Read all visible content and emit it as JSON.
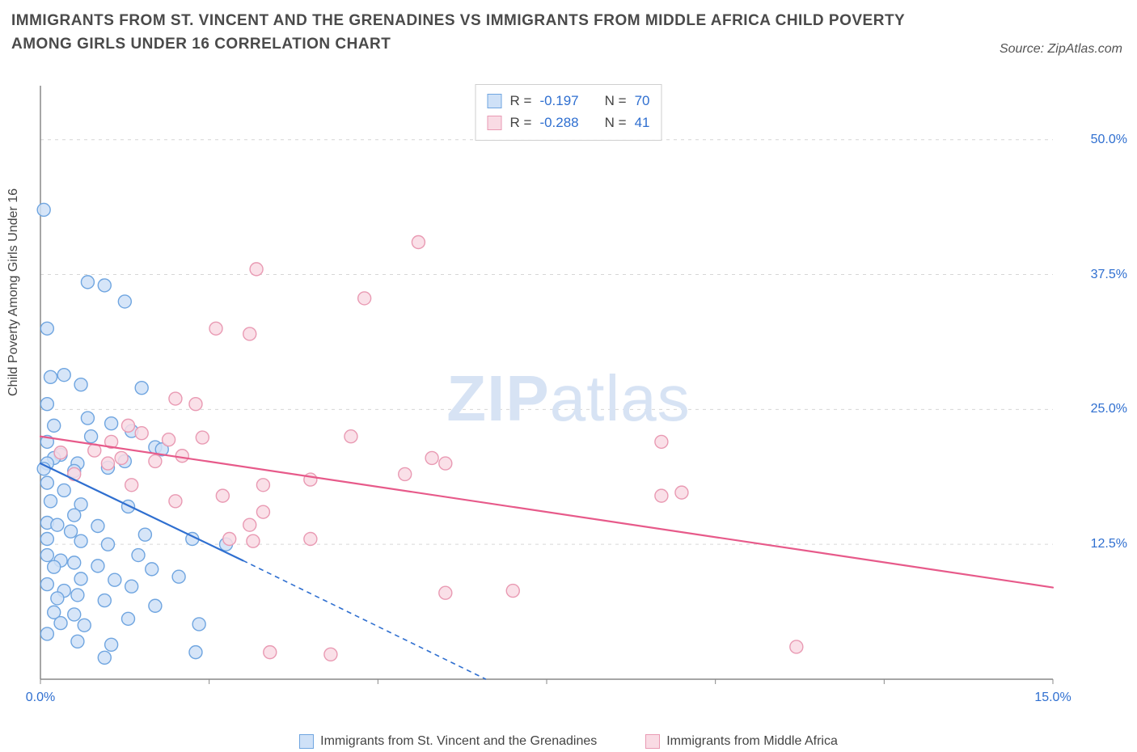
{
  "title": "IMMIGRANTS FROM ST. VINCENT AND THE GRENADINES VS IMMIGRANTS FROM MIDDLE AFRICA CHILD POVERTY AMONG GIRLS UNDER 16 CORRELATION CHART",
  "source": "Source: ZipAtlas.com",
  "ylabel": "Child Poverty Among Girls Under 16",
  "watermark_zip": "ZIP",
  "watermark_atlas": "atlas",
  "chart": {
    "type": "scatter",
    "xlim": [
      0,
      15
    ],
    "ylim": [
      0,
      55
    ],
    "x_ticks": [
      0,
      2.5,
      5,
      7.5,
      10,
      12.5,
      15
    ],
    "x_tick_labels": {
      "0": "0.0%",
      "15": "15.0%"
    },
    "y_ticks": [
      12.5,
      25,
      37.5,
      50
    ],
    "y_tick_labels": {
      "12.5": "12.5%",
      "25": "25.0%",
      "37.5": "37.5%",
      "50": "50.0%"
    },
    "grid_color": "#d6d6d6",
    "axis_color": "#888888",
    "background_color": "#ffffff",
    "marker_radius": 8,
    "marker_stroke_width": 1.4,
    "line_width_solid": 2.2,
    "line_width_dash": 1.6,
    "dash_pattern": "6,5"
  },
  "stats": {
    "rows": [
      {
        "r_label": "R =",
        "r_value": "-0.197",
        "n_label": "N =",
        "n_value": "70"
      },
      {
        "r_label": "R =",
        "r_value": "-0.288",
        "n_label": "N =",
        "n_value": "41"
      }
    ]
  },
  "series": [
    {
      "key": "svg_series",
      "label": "Immigrants from St. Vincent and the Grenadines",
      "fill": "#cfe1f7",
      "stroke": "#6fa5e0",
      "line_color": "#2f6fd0",
      "trend": {
        "x1": 0.0,
        "y1": 20.0,
        "x2": 3.0,
        "y2": 11.0,
        "x_dash_end": 6.6,
        "y_dash_end": 0.0
      },
      "points": [
        [
          0.05,
          43.5
        ],
        [
          0.7,
          36.8
        ],
        [
          0.95,
          36.5
        ],
        [
          1.25,
          35.0
        ],
        [
          0.1,
          32.5
        ],
        [
          0.35,
          28.2
        ],
        [
          0.15,
          28.0
        ],
        [
          0.6,
          27.3
        ],
        [
          1.5,
          27.0
        ],
        [
          0.1,
          25.5
        ],
        [
          0.7,
          24.2
        ],
        [
          0.2,
          23.5
        ],
        [
          1.05,
          23.7
        ],
        [
          0.1,
          22.0
        ],
        [
          0.75,
          22.5
        ],
        [
          1.35,
          23.0
        ],
        [
          1.7,
          21.5
        ],
        [
          0.3,
          20.8
        ],
        [
          0.2,
          20.5
        ],
        [
          0.1,
          20.0
        ],
        [
          0.05,
          19.5
        ],
        [
          0.55,
          20.0
        ],
        [
          0.5,
          19.3
        ],
        [
          1.0,
          19.6
        ],
        [
          1.25,
          20.2
        ],
        [
          1.8,
          21.3
        ],
        [
          0.1,
          18.2
        ],
        [
          0.35,
          17.5
        ],
        [
          0.15,
          16.5
        ],
        [
          0.6,
          16.2
        ],
        [
          0.5,
          15.2
        ],
        [
          1.3,
          16.0
        ],
        [
          0.1,
          14.5
        ],
        [
          0.25,
          14.3
        ],
        [
          0.45,
          13.7
        ],
        [
          0.1,
          13.0
        ],
        [
          0.6,
          12.8
        ],
        [
          1.0,
          12.5
        ],
        [
          1.55,
          13.4
        ],
        [
          2.25,
          13.0
        ],
        [
          2.75,
          12.5
        ],
        [
          0.1,
          11.5
        ],
        [
          0.3,
          11.0
        ],
        [
          0.2,
          10.4
        ],
        [
          0.5,
          10.8
        ],
        [
          0.85,
          10.5
        ],
        [
          0.6,
          9.3
        ],
        [
          1.1,
          9.2
        ],
        [
          1.65,
          10.2
        ],
        [
          1.35,
          8.6
        ],
        [
          2.05,
          9.5
        ],
        [
          0.1,
          8.8
        ],
        [
          0.35,
          8.2
        ],
        [
          0.25,
          7.5
        ],
        [
          0.55,
          7.8
        ],
        [
          0.95,
          7.3
        ],
        [
          0.2,
          6.2
        ],
        [
          0.5,
          6.0
        ],
        [
          0.65,
          5.0
        ],
        [
          1.3,
          5.6
        ],
        [
          1.7,
          6.8
        ],
        [
          2.35,
          5.1
        ],
        [
          0.1,
          4.2
        ],
        [
          0.55,
          3.5
        ],
        [
          1.05,
          3.2
        ],
        [
          0.95,
          2.0
        ],
        [
          2.3,
          2.5
        ],
        [
          0.3,
          5.2
        ],
        [
          1.45,
          11.5
        ],
        [
          0.85,
          14.2
        ]
      ]
    },
    {
      "key": "maf_series",
      "label": "Immigrants from Middle Africa",
      "fill": "#f9dbe4",
      "stroke": "#e99ab3",
      "line_color": "#e75a8a",
      "trend": {
        "x1": 0.0,
        "y1": 22.5,
        "x2": 15.0,
        "y2": 8.5,
        "x_dash_end": 15.0,
        "y_dash_end": 8.5
      },
      "points": [
        [
          5.6,
          40.5
        ],
        [
          3.2,
          38.0
        ],
        [
          4.8,
          35.3
        ],
        [
          2.6,
          32.5
        ],
        [
          3.1,
          32.0
        ],
        [
          2.0,
          26.0
        ],
        [
          2.3,
          25.5
        ],
        [
          1.3,
          23.5
        ],
        [
          1.5,
          22.8
        ],
        [
          1.05,
          22.0
        ],
        [
          1.9,
          22.2
        ],
        [
          2.4,
          22.4
        ],
        [
          0.3,
          21.0
        ],
        [
          0.8,
          21.2
        ],
        [
          1.2,
          20.5
        ],
        [
          1.7,
          20.2
        ],
        [
          2.1,
          20.7
        ],
        [
          4.6,
          22.5
        ],
        [
          5.8,
          20.5
        ],
        [
          5.4,
          19.0
        ],
        [
          3.3,
          18.0
        ],
        [
          6.0,
          20.0
        ],
        [
          9.2,
          22.0
        ],
        [
          0.5,
          19.0
        ],
        [
          1.35,
          18.0
        ],
        [
          2.0,
          16.5
        ],
        [
          2.7,
          17.0
        ],
        [
          3.3,
          15.5
        ],
        [
          2.8,
          13.0
        ],
        [
          3.15,
          12.8
        ],
        [
          4.0,
          13.0
        ],
        [
          3.1,
          14.3
        ],
        [
          9.2,
          17.0
        ],
        [
          9.5,
          17.3
        ],
        [
          6.0,
          8.0
        ],
        [
          7.0,
          8.2
        ],
        [
          3.4,
          2.5
        ],
        [
          4.3,
          2.3
        ],
        [
          11.2,
          3.0
        ],
        [
          4.0,
          18.5
        ],
        [
          1.0,
          20.0
        ]
      ]
    }
  ]
}
